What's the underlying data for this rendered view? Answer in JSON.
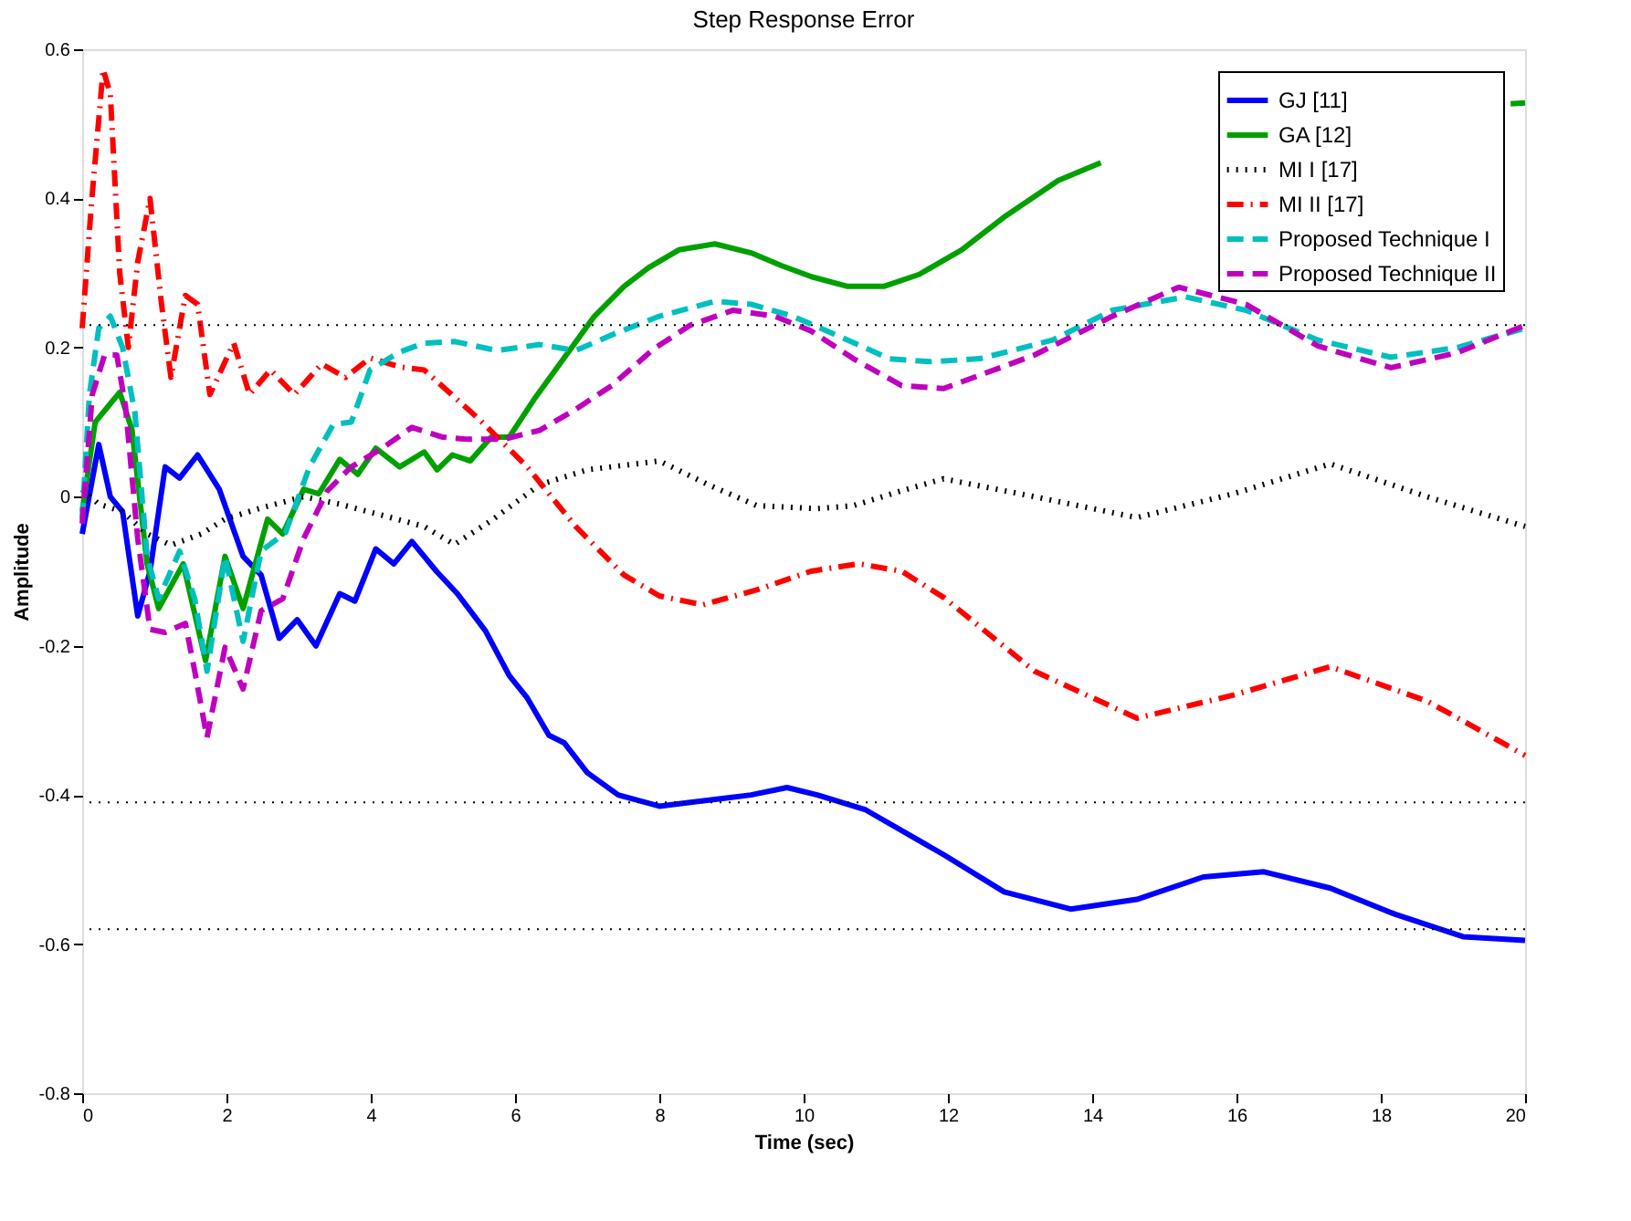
{
  "chart_data": {
    "type": "line",
    "title": "Step Response Error",
    "xlabel": "Time (sec)",
    "ylabel": "Amplitude",
    "xlim": [
      0,
      20
    ],
    "xticks": [
      0,
      2,
      4,
      6,
      8,
      10,
      12,
      14,
      16,
      18,
      20
    ],
    "ylim": [
      -0.8,
      0.6
    ],
    "yticks": [
      -0.8,
      -0.6,
      -0.4,
      -0.2,
      0,
      0.2,
      0.4,
      0.6
    ],
    "grid": false,
    "legend": "top right",
    "marker": "none",
    "ref_lines": [
      {
        "axis": "y",
        "value": 0.23,
        "line_style": "dotted",
        "color": "#000000"
      },
      {
        "axis": "y",
        "value": -0.41,
        "line_style": "dotted",
        "color": "#000000"
      },
      {
        "axis": "y",
        "value": -0.58,
        "line_style": "dotted",
        "color": "#000000"
      }
    ],
    "series": [
      {
        "name": "GJ [11]",
        "color": "#0000ff",
        "line_style": "solid",
        "x": [
          0,
          0.23,
          0.39,
          0.56,
          0.77,
          0.94,
          1.15,
          1.35,
          1.6,
          1.9,
          2.23,
          2.48,
          2.73,
          2.98,
          3.24,
          3.57,
          3.78,
          4.07,
          4.32,
          4.57,
          4.91,
          5.2,
          5.59,
          5.92,
          6.17,
          6.47,
          6.68,
          7.0,
          7.43,
          8.0,
          8.43,
          8.85,
          9.27,
          9.77,
          10.19,
          10.86,
          11.94,
          12.78,
          13.7,
          14.62,
          15.54,
          16.38,
          17.3,
          18.2,
          19.14,
          20
        ],
        "values": [
          -0.05,
          0.07,
          0,
          -0.02,
          -0.16,
          -0.1,
          0.04,
          0.025,
          0.056,
          0.01,
          -0.08,
          -0.105,
          -0.19,
          -0.165,
          -0.2,
          -0.13,
          -0.14,
          -0.07,
          -0.09,
          -0.06,
          -0.1,
          -0.13,
          -0.18,
          -0.24,
          -0.27,
          -0.32,
          -0.33,
          -0.37,
          -0.4,
          -0.415,
          -0.41,
          -0.405,
          -0.4,
          -0.39,
          -0.4,
          -0.42,
          -0.48,
          -0.53,
          -0.553,
          -0.54,
          -0.51,
          -0.503,
          -0.525,
          -0.56,
          -0.59,
          -0.595
        ]
      },
      {
        "name": "GA [12]",
        "color": "#00a000",
        "line_style": "solid",
        "x": [
          0,
          0.18,
          0.35,
          0.52,
          0.69,
          0.9,
          1.06,
          1.4,
          1.71,
          1.98,
          2.23,
          2.57,
          2.78,
          3.07,
          3.28,
          3.57,
          3.82,
          4.07,
          4.4,
          4.74,
          4.92,
          5.13,
          5.38,
          5.67,
          5.92,
          6.26,
          6.68,
          7.1,
          7.51,
          7.85,
          8.27,
          8.77,
          9.27,
          9.69,
          10.11,
          10.61,
          11.11,
          11.6,
          12.19,
          12.78,
          13.53,
          14.12,
          17,
          19.8,
          20
        ],
        "values": [
          -0.02,
          0.1,
          0.12,
          0.14,
          0.09,
          -0.09,
          -0.15,
          -0.09,
          -0.22,
          -0.08,
          -0.15,
          -0.03,
          -0.05,
          0.01,
          0.004,
          0.05,
          0.03,
          0.065,
          0.04,
          0.06,
          0.036,
          0.056,
          0.048,
          0.08,
          0.08,
          0.13,
          0.186,
          0.242,
          0.282,
          0.307,
          0.331,
          0.339,
          0.327,
          0.31,
          0.295,
          0.282,
          0.282,
          0.298,
          0.331,
          0.375,
          0.424,
          0.448,
          null,
          0.527,
          0.528
        ]
      },
      {
        "name": "MI I [17]",
        "color": "#000000",
        "line_style": "dotted",
        "x": [
          0,
          0.23,
          0.56,
          0.9,
          1.23,
          1.65,
          1.98,
          2.48,
          3.07,
          3.57,
          4.16,
          4.74,
          5.16,
          5.67,
          6.34,
          7.0,
          8.0,
          8.68,
          9.35,
          10.19,
          10.69,
          11.36,
          11.94,
          13.2,
          14.62,
          15.96,
          17.3,
          18.64,
          20
        ],
        "values": [
          0.01,
          -0.01,
          -0.02,
          -0.05,
          -0.065,
          -0.05,
          -0.03,
          -0.015,
          0,
          -0.01,
          -0.025,
          -0.04,
          -0.064,
          -0.032,
          0.016,
          0.036,
          0.048,
          0.016,
          -0.012,
          -0.016,
          -0.012,
          0.008,
          0.024,
          0.0,
          -0.028,
          0.004,
          0.044,
          0.0,
          -0.04
        ]
      },
      {
        "name": "MI II [17]",
        "color": "#ff0000",
        "line_style": "dashdot",
        "x": [
          0,
          0.13,
          0.29,
          0.39,
          0.52,
          0.64,
          0.77,
          0.94,
          1.1,
          1.23,
          1.43,
          1.6,
          1.77,
          2.1,
          2.32,
          2.61,
          2.94,
          3.32,
          3.65,
          3.99,
          4.41,
          4.74,
          5.5,
          6.17,
          6.84,
          7.51,
          8.0,
          8.6,
          9.35,
          10.1,
          10.77,
          11.36,
          11.94,
          13.2,
          14.62,
          15.96,
          17.3,
          18.64,
          20
        ],
        "values": [
          0.226,
          0.395,
          0.573,
          0.54,
          0.3,
          0.2,
          0.315,
          0.4,
          0.258,
          0.16,
          0.27,
          0.258,
          0.137,
          0.206,
          0.137,
          0.17,
          0.137,
          0.178,
          0.16,
          0.186,
          0.174,
          0.17,
          0.104,
          0.04,
          -0.04,
          -0.105,
          -0.133,
          -0.145,
          -0.125,
          -0.1,
          -0.09,
          -0.1,
          -0.135,
          -0.234,
          -0.297,
          -0.266,
          -0.228,
          -0.274,
          -0.347
        ]
      },
      {
        "name": "Proposed Technique I",
        "color": "#00bfbf",
        "line_style": "dashed",
        "x": [
          0,
          0.1,
          0.23,
          0.39,
          0.56,
          0.73,
          0.9,
          1.06,
          1.35,
          1.56,
          1.73,
          1.98,
          2.23,
          2.48,
          2.82,
          3.15,
          3.48,
          3.73,
          3.99,
          4.4,
          4.74,
          5.17,
          5.75,
          6.34,
          6.84,
          7.34,
          8.0,
          8.77,
          9.27,
          9.85,
          10.52,
          11.19,
          11.77,
          12.44,
          13.45,
          14.28,
          15.29,
          16.13,
          17.13,
          18.14,
          19.06,
          20
        ],
        "values": [
          -0.03,
          0.137,
          0.226,
          0.242,
          0.2,
          0.113,
          -0.08,
          -0.137,
          -0.073,
          -0.137,
          -0.234,
          -0.08,
          -0.194,
          -0.073,
          -0.048,
          0.04,
          0.097,
          0.1,
          0.17,
          0.194,
          0.206,
          0.208,
          0.196,
          0.204,
          0.196,
          0.217,
          0.242,
          0.262,
          0.258,
          0.242,
          0.214,
          0.185,
          0.181,
          0.185,
          0.21,
          0.25,
          0.268,
          0.25,
          0.21,
          0.187,
          0.2,
          0.226
        ]
      },
      {
        "name": "Proposed Technique II",
        "color": "#bf00bf",
        "line_style": "dashed",
        "x": [
          0,
          0.14,
          0.31,
          0.48,
          0.6,
          0.77,
          0.94,
          1.15,
          1.43,
          1.56,
          1.73,
          1.98,
          2.23,
          2.48,
          2.78,
          3.07,
          3.4,
          3.73,
          4.16,
          4.57,
          4.99,
          5.34,
          5.84,
          6.34,
          6.84,
          7.34,
          7.92,
          8.43,
          9.02,
          9.6,
          10.11,
          10.69,
          11.36,
          11.94,
          13.2,
          14.28,
          15.2,
          16.13,
          17.13,
          18.14,
          19.06,
          20
        ],
        "values": [
          -0.036,
          0.137,
          0.19,
          0.19,
          0.121,
          -0.056,
          -0.178,
          -0.182,
          -0.17,
          -0.234,
          -0.323,
          -0.202,
          -0.258,
          -0.153,
          -0.137,
          -0.056,
          0.008,
          0.04,
          0.065,
          0.093,
          0.08,
          0.077,
          0.077,
          0.089,
          0.117,
          0.149,
          0.198,
          0.23,
          0.25,
          0.242,
          0.222,
          0.185,
          0.149,
          0.145,
          0.19,
          0.242,
          0.281,
          0.258,
          0.202,
          0.173,
          0.193,
          0.23
        ]
      }
    ]
  }
}
